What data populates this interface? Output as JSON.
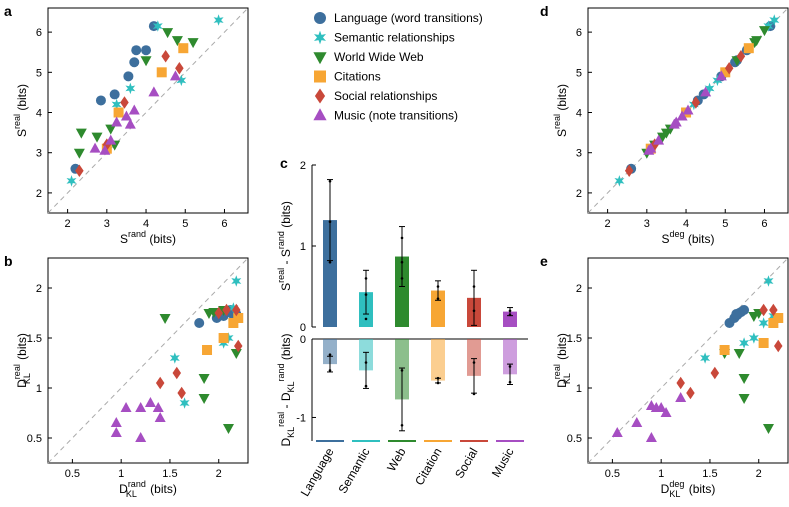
{
  "colors": {
    "Language": "#3d6f9d",
    "Semantic": "#2fbfbf",
    "Web": "#2e8a2e",
    "Citation": "#f7a634",
    "Social": "#c9483a",
    "Music": "#a64ec2",
    "diag": "#aaaaaa"
  },
  "legend": [
    {
      "key": "Language",
      "label": "Language (word transitions)",
      "marker": "circle"
    },
    {
      "key": "Semantic",
      "label": "Semantic relationships",
      "marker": "star"
    },
    {
      "key": "Web",
      "label": "World Wide Web",
      "marker": "tri-down"
    },
    {
      "key": "Citation",
      "label": "Citations",
      "marker": "square"
    },
    {
      "key": "Social",
      "label": "Social relationships",
      "marker": "diamond"
    },
    {
      "key": "Music",
      "label": "Music (note transitions)",
      "marker": "tri-up"
    }
  ],
  "chart_data": [
    {
      "panel": "a",
      "type": "scatter",
      "xlabel": {
        "main": "S",
        "sup": "rand",
        "tail": " (bits)"
      },
      "ylabel": {
        "main": "S",
        "sup": "real",
        "tail": " (bits)"
      },
      "xlim": [
        1.5,
        6.6
      ],
      "ylim": [
        1.5,
        6.6
      ],
      "xticks": [
        "2",
        "3",
        "4",
        "5",
        "6"
      ],
      "yticks": [
        "2",
        "3",
        "4",
        "5",
        "6"
      ],
      "diagonal": true,
      "series": {
        "Language": [
          [
            2.2,
            2.6
          ],
          [
            2.85,
            4.3
          ],
          [
            3.2,
            4.45
          ],
          [
            3.55,
            4.9
          ],
          [
            3.7,
            5.25
          ],
          [
            3.75,
            5.55
          ],
          [
            4.0,
            5.55
          ],
          [
            4.2,
            6.15
          ]
        ],
        "Semantic": [
          [
            2.1,
            2.3
          ],
          [
            3.6,
            4.6
          ],
          [
            4.3,
            6.15
          ],
          [
            5.85,
            6.3
          ],
          [
            4.9,
            4.8
          ],
          [
            3.25,
            4.2
          ]
        ],
        "Web": [
          [
            2.3,
            3.0
          ],
          [
            2.35,
            3.5
          ],
          [
            2.75,
            3.4
          ],
          [
            3.1,
            3.6
          ],
          [
            4.55,
            6.0
          ],
          [
            4.8,
            5.8
          ],
          [
            5.2,
            5.75
          ],
          [
            4.0,
            5.3
          ],
          [
            3.2,
            3.2
          ]
        ],
        "Citation": [
          [
            3.3,
            4.0
          ],
          [
            4.4,
            5.0
          ],
          [
            4.95,
            5.6
          ],
          [
            3.0,
            3.1
          ]
        ],
        "Social": [
          [
            2.3,
            2.55
          ],
          [
            3.0,
            3.2
          ],
          [
            3.45,
            4.25
          ],
          [
            4.5,
            5.4
          ],
          [
            4.85,
            5.1
          ]
        ],
        "Music": [
          [
            2.7,
            3.1
          ],
          [
            3.25,
            3.75
          ],
          [
            3.5,
            3.9
          ],
          [
            3.7,
            4.05
          ],
          [
            4.2,
            4.5
          ],
          [
            4.75,
            4.9
          ],
          [
            2.95,
            3.05
          ],
          [
            3.1,
            3.3
          ],
          [
            3.6,
            3.7
          ]
        ]
      }
    },
    {
      "panel": "b",
      "type": "scatter",
      "xlabel": {
        "main": "D",
        "sub": "KL",
        "sup": "rand",
        "tail": " (bits)"
      },
      "ylabel": {
        "main": "D",
        "sub": "KL",
        "sup": "real",
        "tail": " (bits)"
      },
      "xlim": [
        0.25,
        2.3
      ],
      "ylim": [
        0.25,
        2.3
      ],
      "xticks": [
        "0.5",
        "1",
        "1.5",
        "2"
      ],
      "yticks": [
        "0.5",
        "1",
        "1.5",
        "2"
      ],
      "diagonal": true,
      "series": {
        "Language": [
          [
            1.8,
            1.65
          ],
          [
            2.0,
            1.75
          ],
          [
            2.05,
            1.72
          ],
          [
            2.1,
            1.76
          ],
          [
            2.15,
            1.73
          ],
          [
            2.12,
            1.78
          ],
          [
            2.18,
            1.74
          ],
          [
            1.98,
            1.7
          ]
        ],
        "Semantic": [
          [
            1.55,
            1.3
          ],
          [
            1.65,
            0.85
          ],
          [
            2.05,
            1.45
          ],
          [
            2.18,
            2.07
          ],
          [
            2.1,
            1.5
          ],
          [
            2.15,
            1.8
          ]
        ],
        "Web": [
          [
            1.9,
            1.75
          ],
          [
            1.95,
            1.76
          ],
          [
            1.85,
            1.1
          ],
          [
            1.85,
            0.9
          ],
          [
            2.1,
            0.6
          ],
          [
            2.18,
            1.35
          ],
          [
            2.05,
            1.78
          ],
          [
            1.45,
            1.7
          ]
        ],
        "Citation": [
          [
            1.88,
            1.38
          ],
          [
            2.05,
            1.5
          ],
          [
            2.15,
            1.65
          ],
          [
            2.2,
            1.7
          ]
        ],
        "Social": [
          [
            1.4,
            1.05
          ],
          [
            1.57,
            1.15
          ],
          [
            1.62,
            0.95
          ],
          [
            2.08,
            1.78
          ],
          [
            2.18,
            1.78
          ],
          [
            2.2,
            1.42
          ],
          [
            2.0,
            1.75
          ]
        ],
        "Music": [
          [
            0.95,
            0.65
          ],
          [
            0.95,
            0.55
          ],
          [
            1.05,
            0.8
          ],
          [
            1.2,
            0.5
          ],
          [
            1.2,
            0.8
          ],
          [
            1.3,
            0.85
          ],
          [
            1.38,
            0.8
          ],
          [
            1.4,
            0.7
          ]
        ]
      }
    },
    {
      "panel": "c",
      "type": "bar",
      "categories": [
        "Language",
        "Semantic",
        "Web",
        "Citation",
        "Social",
        "Music"
      ],
      "top": {
        "values": [
          1.32,
          0.43,
          0.87,
          0.45,
          0.36,
          0.19
        ],
        "errors": [
          0.5,
          0.27,
          0.37,
          0.12,
          0.34,
          0.05
        ],
        "ylim": [
          0,
          2
        ],
        "yticks": [
          "0",
          "1",
          "2"
        ],
        "ylabel": "S^real - S^rand (bits)",
        "points": [
          [
            0.8,
            1.3,
            1.8
          ],
          [
            0.1,
            0.4,
            0.6
          ],
          [
            0.6,
            0.8,
            1.1
          ],
          [
            0.35,
            0.5
          ],
          [
            0.2,
            0.5
          ],
          [
            0.15,
            0.2
          ]
        ]
      },
      "bottom": {
        "values": [
          -0.32,
          -0.4,
          -0.77,
          -0.53,
          -0.47,
          -0.45
        ],
        "errors": [
          0.1,
          0.23,
          0.4,
          0.03,
          0.22,
          0.13
        ],
        "ylim": [
          -1.3,
          0
        ],
        "yticks": [
          "-1",
          "0"
        ],
        "ylabel": "D_KL^real - D_KL^rand (bits)",
        "points": [
          [
            -0.2,
            -0.4
          ],
          [
            -0.3,
            -0.6
          ],
          [
            -0.4,
            -1.1
          ],
          [
            -0.5,
            -0.56
          ],
          [
            -0.3,
            -0.7
          ],
          [
            -0.35,
            -0.55
          ]
        ]
      }
    },
    {
      "panel": "d",
      "type": "scatter",
      "xlabel": {
        "main": "S",
        "sup": "deg",
        "tail": " (bits)"
      },
      "ylabel": {
        "main": "S",
        "sup": "real",
        "tail": " (bits)"
      },
      "xlim": [
        1.5,
        6.6
      ],
      "ylim": [
        1.5,
        6.6
      ],
      "xticks": [
        "2",
        "3",
        "4",
        "5",
        "6"
      ],
      "yticks": [
        "2",
        "3",
        "4",
        "5",
        "6"
      ],
      "diagonal": true,
      "series": {
        "Language": [
          [
            2.6,
            2.6
          ],
          [
            4.3,
            4.3
          ],
          [
            4.45,
            4.45
          ],
          [
            4.9,
            4.9
          ],
          [
            5.25,
            5.25
          ],
          [
            5.55,
            5.55
          ],
          [
            6.15,
            6.15
          ],
          [
            5.3,
            5.3
          ]
        ],
        "Semantic": [
          [
            2.3,
            2.3
          ],
          [
            4.6,
            4.6
          ],
          [
            6.25,
            6.3
          ],
          [
            4.8,
            4.8
          ],
          [
            4.2,
            4.2
          ],
          [
            6.1,
            6.15
          ]
        ],
        "Web": [
          [
            3.0,
            3.0
          ],
          [
            3.5,
            3.5
          ],
          [
            3.4,
            3.4
          ],
          [
            3.6,
            3.6
          ],
          [
            6.0,
            6.05
          ],
          [
            5.8,
            5.8
          ],
          [
            5.75,
            5.75
          ],
          [
            5.3,
            5.3
          ],
          [
            3.2,
            3.2
          ]
        ],
        "Citation": [
          [
            4.0,
            4.0
          ],
          [
            5.0,
            5.0
          ],
          [
            5.6,
            5.6
          ],
          [
            3.1,
            3.1
          ]
        ],
        "Social": [
          [
            2.55,
            2.55
          ],
          [
            3.2,
            3.2
          ],
          [
            4.25,
            4.25
          ],
          [
            5.4,
            5.4
          ],
          [
            5.1,
            5.1
          ]
        ],
        "Music": [
          [
            3.1,
            3.1
          ],
          [
            3.75,
            3.75
          ],
          [
            3.9,
            3.9
          ],
          [
            4.05,
            4.05
          ],
          [
            4.5,
            4.5
          ],
          [
            4.9,
            4.9
          ],
          [
            3.05,
            3.05
          ],
          [
            3.3,
            3.3
          ],
          [
            3.7,
            3.7
          ]
        ]
      }
    },
    {
      "panel": "e",
      "type": "scatter",
      "xlabel": {
        "main": "D",
        "sub": "KL",
        "sup": "deg",
        "tail": " (bits)"
      },
      "ylabel": {
        "main": "D",
        "sub": "KL",
        "sup": "real",
        "tail": " (bits)"
      },
      "xlim": [
        0.25,
        2.3
      ],
      "ylim": [
        0.25,
        2.3
      ],
      "xticks": [
        "0.5",
        "1",
        "1.5",
        "2"
      ],
      "yticks": [
        "0.5",
        "1",
        "1.5",
        "2"
      ],
      "diagonal": true,
      "series": {
        "Language": [
          [
            1.7,
            1.65
          ],
          [
            1.75,
            1.7
          ],
          [
            1.78,
            1.73
          ],
          [
            1.8,
            1.75
          ],
          [
            1.82,
            1.76
          ],
          [
            1.85,
            1.78
          ],
          [
            1.77,
            1.74
          ]
        ],
        "Semantic": [
          [
            1.45,
            1.3
          ],
          [
            1.95,
            1.5
          ],
          [
            2.1,
            2.07
          ],
          [
            2.15,
            1.72
          ],
          [
            2.05,
            1.65
          ],
          [
            1.85,
            1.45
          ]
        ],
        "Web": [
          [
            1.85,
            1.1
          ],
          [
            1.85,
            0.9
          ],
          [
            2.1,
            0.6
          ],
          [
            2.0,
            1.75
          ],
          [
            1.95,
            1.72
          ],
          [
            1.65,
            1.35
          ],
          [
            1.8,
            1.35
          ]
        ],
        "Citation": [
          [
            1.65,
            1.38
          ],
          [
            2.05,
            1.45
          ],
          [
            2.15,
            1.65
          ],
          [
            2.2,
            1.7
          ]
        ],
        "Social": [
          [
            1.55,
            1.15
          ],
          [
            1.3,
            0.95
          ],
          [
            1.2,
            1.05
          ],
          [
            2.05,
            1.78
          ],
          [
            2.15,
            1.78
          ],
          [
            2.2,
            1.42
          ]
        ],
        "Music": [
          [
            0.55,
            0.55
          ],
          [
            0.75,
            0.65
          ],
          [
            0.9,
            0.5
          ],
          [
            0.9,
            0.82
          ],
          [
            1.0,
            0.8
          ],
          [
            1.05,
            0.75
          ],
          [
            1.2,
            0.9
          ],
          [
            0.95,
            0.8
          ]
        ]
      }
    }
  ]
}
